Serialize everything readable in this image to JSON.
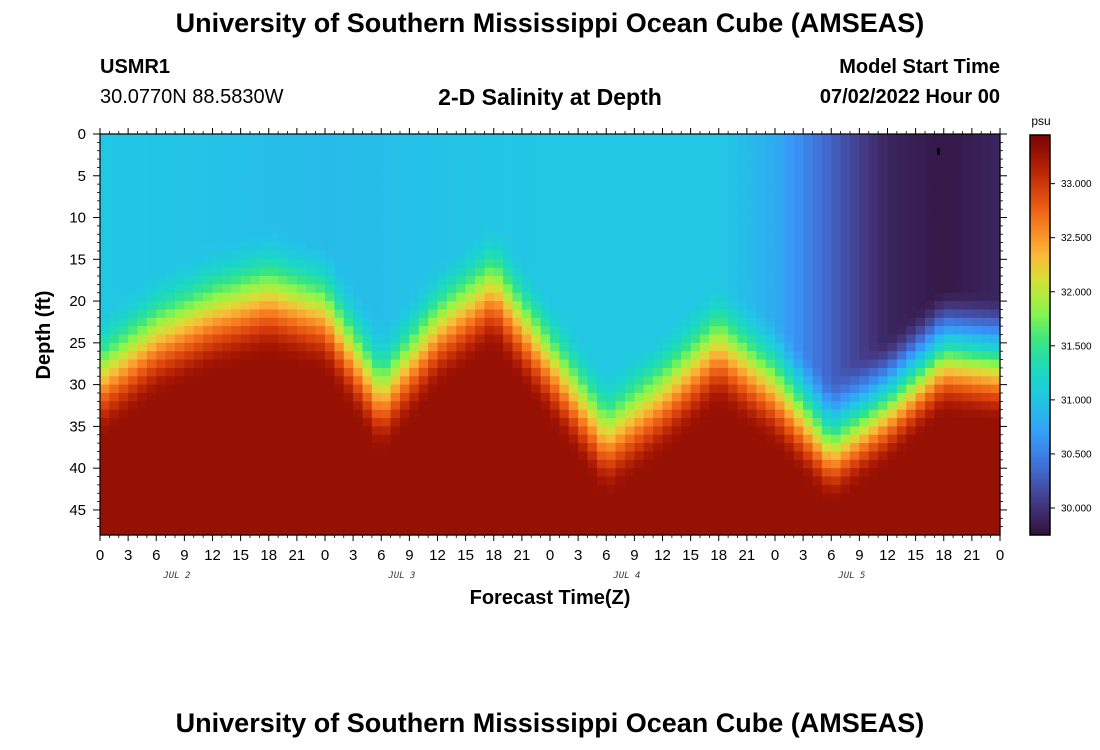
{
  "header": {
    "title": "University of Southern Mississippi Ocean Cube (AMSEAS)",
    "station": "USMR1",
    "coords": "30.0770N  88.5830W",
    "subtitle": "2-D Salinity at Depth",
    "model_start_label": "Model Start Time",
    "model_start_value": "07/02/2022 Hour 00"
  },
  "footer": {
    "title": "University of Southern Mississippi Ocean Cube (AMSEAS)"
  },
  "chart_data": {
    "type": "heatmap",
    "title": "2-D Salinity at Depth",
    "xlabel": "Forecast Time(Z)",
    "ylabel": "Depth (ft)",
    "x_range_hours": [
      0,
      96
    ],
    "y_range_ft": [
      0,
      48
    ],
    "x_tick_labels": [
      "0",
      "3",
      "6",
      "9",
      "12",
      "15",
      "18",
      "21",
      "0",
      "3",
      "6",
      "9",
      "12",
      "15",
      "18",
      "21",
      "0",
      "3",
      "6",
      "9",
      "12",
      "15",
      "18",
      "21",
      "0",
      "3",
      "6",
      "9",
      "12",
      "15",
      "18",
      "21",
      "0"
    ],
    "y_ticks": [
      0,
      5,
      10,
      15,
      20,
      25,
      30,
      35,
      40,
      45
    ],
    "date_labels": [
      "JUL 2",
      "JUL 3",
      "JUL 4",
      "JUL 5"
    ],
    "colorbar": {
      "unit": "psu",
      "range": [
        29.75,
        33.45
      ],
      "ticks": [
        "30.000",
        "30.500",
        "31.000",
        "31.500",
        "32.000",
        "32.500",
        "33.000"
      ],
      "colormap": "turbo"
    },
    "halocline_depth_ft": {
      "hours": [
        0,
        6,
        12,
        18,
        24,
        30,
        36,
        42,
        48,
        54,
        60,
        66,
        72,
        78,
        84,
        90,
        96
      ],
      "depth": [
        31,
        26,
        23,
        21,
        23,
        33,
        25,
        20,
        29,
        38,
        33,
        27,
        32,
        39,
        34,
        28,
        29
      ]
    },
    "surface_salinity_psu": {
      "hours": [
        0,
        24,
        48,
        66,
        72,
        78,
        84,
        90,
        96
      ],
      "salinity": [
        31.0,
        30.9,
        31.0,
        31.0,
        30.8,
        30.3,
        29.9,
        29.8,
        29.9
      ]
    },
    "deep_salinity_psu": 33.3
  }
}
